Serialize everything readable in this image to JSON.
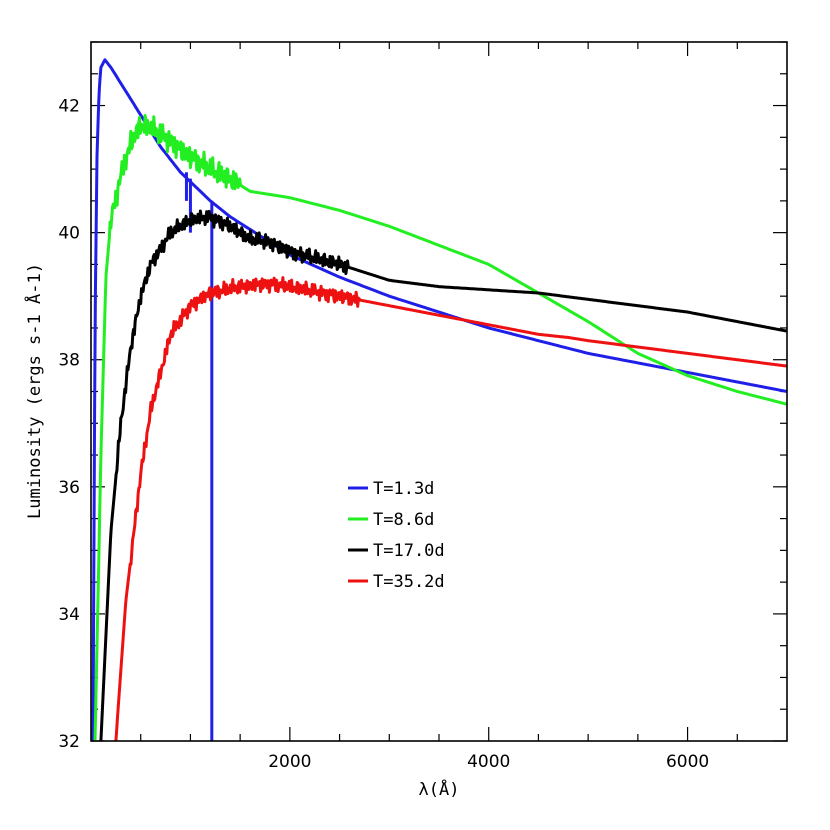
{
  "chart_data": {
    "type": "line",
    "xlabel": "λ(Å)",
    "ylabel": "Luminosity (ergs s-1 Å-1)",
    "xlim": [
      0,
      7000
    ],
    "ylim": [
      32,
      43
    ],
    "x_ticks": [
      2000,
      4000,
      6000
    ],
    "y_ticks": [
      32,
      34,
      36,
      38,
      40,
      42
    ],
    "legend_position": "center",
    "series": [
      {
        "name": "T=1.3d",
        "color": "#1f1fe8",
        "points": [
          [
            20,
            32
          ],
          [
            40,
            38.5
          ],
          [
            60,
            41.2
          ],
          [
            80,
            42.2
          ],
          [
            100,
            42.6
          ],
          [
            140,
            42.72
          ],
          [
            200,
            42.6
          ],
          [
            300,
            42.35
          ],
          [
            400,
            42.1
          ],
          [
            500,
            41.85
          ],
          [
            700,
            41.35
          ],
          [
            900,
            40.95
          ],
          [
            1000,
            40.8
          ],
          [
            1200,
            40.5
          ],
          [
            1400,
            40.25
          ],
          [
            1600,
            40.05
          ],
          [
            1800,
            39.85
          ],
          [
            2000,
            39.65
          ],
          [
            2500,
            39.3
          ],
          [
            3000,
            39.0
          ],
          [
            3500,
            38.75
          ],
          [
            4000,
            38.5
          ],
          [
            4500,
            38.3
          ],
          [
            5000,
            38.1
          ],
          [
            5500,
            37.95
          ],
          [
            6000,
            37.8
          ],
          [
            6500,
            37.65
          ],
          [
            7000,
            37.5
          ]
        ],
        "features": [
          {
            "x": 960,
            "y_from": 40.95,
            "y_to": 40.5
          },
          {
            "x": 1000,
            "y_from": 40.85,
            "y_to": 40.0
          },
          {
            "x": 1215,
            "y_from": 40.5,
            "y_to": 32
          }
        ]
      },
      {
        "name": "T=8.6d",
        "color": "#22ee22",
        "points": [
          [
            40,
            32
          ],
          [
            100,
            36.5
          ],
          [
            150,
            39.3
          ],
          [
            200,
            40.2
          ],
          [
            300,
            40.9
          ],
          [
            400,
            41.4
          ],
          [
            500,
            41.7
          ],
          [
            600,
            41.65
          ],
          [
            700,
            41.55
          ],
          [
            800,
            41.45
          ],
          [
            900,
            41.3
          ],
          [
            1000,
            41.2
          ],
          [
            1200,
            41.0
          ],
          [
            1400,
            40.85
          ],
          [
            1600,
            40.65
          ],
          [
            2000,
            40.55
          ],
          [
            2500,
            40.35
          ],
          [
            3000,
            40.1
          ],
          [
            3500,
            39.8
          ],
          [
            4000,
            39.5
          ],
          [
            4500,
            39.05
          ],
          [
            5000,
            38.6
          ],
          [
            5500,
            38.1
          ],
          [
            6000,
            37.75
          ],
          [
            6500,
            37.5
          ],
          [
            7000,
            37.3
          ]
        ]
      },
      {
        "name": "T=17.0d",
        "color": "#000000",
        "points": [
          [
            100,
            32
          ],
          [
            200,
            35.3
          ],
          [
            300,
            37.0
          ],
          [
            400,
            38.2
          ],
          [
            500,
            39.0
          ],
          [
            600,
            39.5
          ],
          [
            800,
            40.0
          ],
          [
            1000,
            40.2
          ],
          [
            1200,
            40.25
          ],
          [
            1400,
            40.1
          ],
          [
            1600,
            39.9
          ],
          [
            1800,
            39.85
          ],
          [
            2000,
            39.7
          ],
          [
            2500,
            39.5
          ],
          [
            3000,
            39.25
          ],
          [
            3500,
            39.15
          ],
          [
            4000,
            39.1
          ],
          [
            4500,
            39.05
          ],
          [
            5000,
            38.95
          ],
          [
            5500,
            38.85
          ],
          [
            6000,
            38.75
          ],
          [
            6500,
            38.6
          ],
          [
            7000,
            38.45
          ]
        ]
      },
      {
        "name": "T=35.2d",
        "color": "#ee1111",
        "points": [
          [
            250,
            32
          ],
          [
            350,
            34.2
          ],
          [
            500,
            36.2
          ],
          [
            600,
            37.2
          ],
          [
            800,
            38.4
          ],
          [
            1000,
            38.85
          ],
          [
            1200,
            39.05
          ],
          [
            1500,
            39.15
          ],
          [
            1800,
            39.2
          ],
          [
            2000,
            39.15
          ],
          [
            2500,
            39.0
          ],
          [
            3000,
            38.85
          ],
          [
            3500,
            38.7
          ],
          [
            4000,
            38.55
          ],
          [
            4500,
            38.4
          ],
          [
            4800,
            38.35
          ],
          [
            5000,
            38.3
          ],
          [
            5500,
            38.2
          ],
          [
            6000,
            38.1
          ],
          [
            6500,
            38.0
          ],
          [
            7000,
            37.9
          ]
        ]
      }
    ]
  }
}
